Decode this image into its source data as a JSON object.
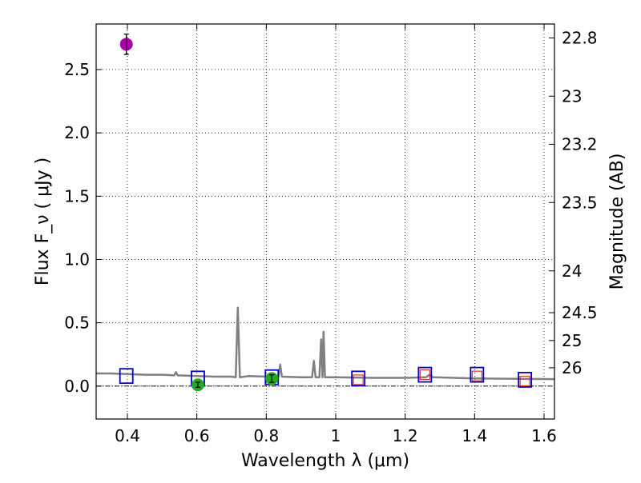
{
  "chart_data": {
    "type": "scatter",
    "xlabel": "Wavelength  λ (μm)",
    "ylabel": "Flux  F_ν  ( μJy )",
    "ylabel_right": "Magnitude (AB)",
    "xlim": [
      0.31,
      1.63
    ],
    "ylim": [
      -0.26,
      2.86
    ],
    "grid": true,
    "x_ticks": [
      0.4,
      0.6,
      0.8,
      1.0,
      1.2,
      1.4,
      1.6
    ],
    "x_tick_labels": [
      "0.4",
      "0.6",
      "0.8",
      "1",
      "1.2",
      "1.4",
      "1.6"
    ],
    "y_ticks": [
      0.0,
      0.5,
      1.0,
      1.5,
      2.0,
      2.5
    ],
    "y_tick_labels": [
      "0.0",
      "0.5",
      "1.0",
      "1.5",
      "2.0",
      "2.5"
    ],
    "right_ticks": [
      {
        "label": "22.8",
        "flux": 2.75
      },
      {
        "label": "23",
        "flux": 2.29
      },
      {
        "label": "23.2",
        "flux": 1.91
      },
      {
        "label": "23.5",
        "flux": 1.45
      },
      {
        "label": "24",
        "flux": 0.91
      },
      {
        "label": "24.5",
        "flux": 0.58
      },
      {
        "label": "25",
        "flux": 0.36
      },
      {
        "label": "26",
        "flux": 0.145
      }
    ],
    "zero_line": 0.0,
    "colors": {
      "model": "#808080",
      "model_photometry": "#0000cc",
      "upper_limit": "#dd3333",
      "detection_uv": "#aa00aa",
      "detection_optical": "#22aa22"
    },
    "series": [
      {
        "kind": "line",
        "points": [
          [
            0.31,
            0.1
          ],
          [
            0.35,
            0.1
          ],
          [
            0.4,
            0.095
          ],
          [
            0.45,
            0.09
          ],
          [
            0.5,
            0.09
          ],
          [
            0.535,
            0.085
          ],
          [
            0.54,
            0.11
          ],
          [
            0.545,
            0.085
          ],
          [
            0.6,
            0.08
          ],
          [
            0.65,
            0.075
          ],
          [
            0.7,
            0.075
          ],
          [
            0.712,
            0.07
          ],
          [
            0.718,
            0.62
          ],
          [
            0.724,
            0.07
          ],
          [
            0.75,
            0.08
          ],
          [
            0.8,
            0.075
          ],
          [
            0.835,
            0.075
          ],
          [
            0.84,
            0.17
          ],
          [
            0.845,
            0.075
          ],
          [
            0.9,
            0.07
          ],
          [
            0.932,
            0.07
          ],
          [
            0.937,
            0.2
          ],
          [
            0.942,
            0.07
          ],
          [
            0.953,
            0.07
          ],
          [
            0.958,
            0.37
          ],
          [
            0.962,
            0.07
          ],
          [
            0.965,
            0.43
          ],
          [
            0.969,
            0.07
          ],
          [
            1.0,
            0.07
          ],
          [
            1.1,
            0.065
          ],
          [
            1.2,
            0.065
          ],
          [
            1.26,
            0.07
          ],
          [
            1.27,
            0.09
          ],
          [
            1.28,
            0.07
          ],
          [
            1.4,
            0.06
          ],
          [
            1.5,
            0.058
          ],
          [
            1.63,
            0.055
          ]
        ]
      },
      {
        "kind": "square",
        "points": [
          [
            0.397,
            0.08
          ],
          [
            0.603,
            0.06
          ],
          [
            0.816,
            0.07
          ],
          [
            1.065,
            0.06
          ],
          [
            1.257,
            0.09
          ],
          [
            1.407,
            0.09
          ],
          [
            1.545,
            0.05
          ]
        ]
      },
      {
        "kind": "upper_limit",
        "points": [
          [
            1.065,
            0.05
          ],
          [
            1.257,
            0.09
          ],
          [
            1.407,
            0.08
          ],
          [
            1.545,
            0.04
          ]
        ]
      },
      {
        "kind": "detection",
        "points": [
          {
            "x": 0.397,
            "y": 2.7,
            "err": 0.08,
            "color": "#aa00aa"
          },
          {
            "x": 0.603,
            "y": 0.01,
            "err": 0.02,
            "color": "#22aa22"
          },
          {
            "x": 0.816,
            "y": 0.06,
            "err": 0.03,
            "color": "#22aa22"
          }
        ]
      }
    ]
  }
}
